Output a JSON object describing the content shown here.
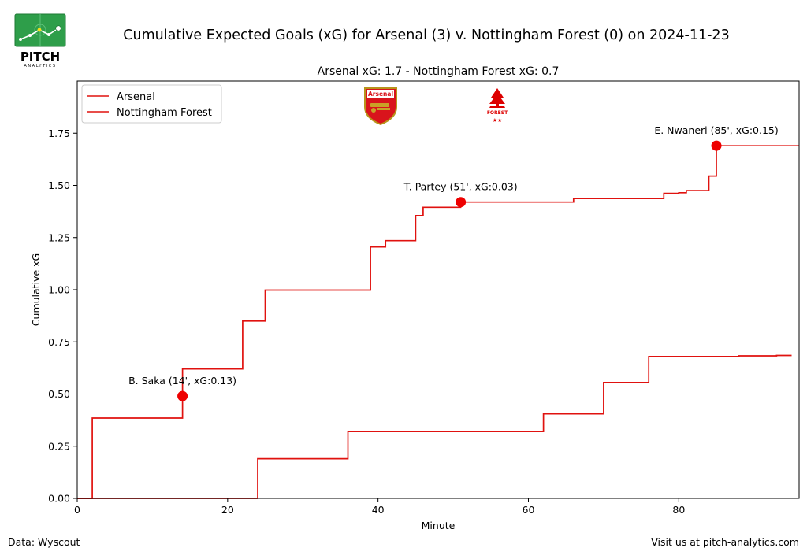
{
  "header": {
    "logo_text": "PITCH",
    "logo_subtext": "ANALYTICS",
    "title": "Cumulative Expected Goals (xG) for Arsenal (3) v. Nottingham Forest (0) on 2024-11-23"
  },
  "footer": {
    "source": "Data: Wyscout",
    "website": "Visit us at pitch-analytics.com"
  },
  "badges": {
    "home_text": "Arsenal",
    "away_text": "FOREST"
  },
  "colors": {
    "line": "#e0120f",
    "goal_marker": "#ee0000"
  },
  "chart_data": {
    "type": "line",
    "subtitle": "Arsenal xG: 1.7 - Nottingham Forest xG: 0.7",
    "xlabel": "Minute",
    "ylabel": "Cumulative xG",
    "xlim": [
      0,
      96
    ],
    "ylim": [
      0,
      2.0
    ],
    "xticks": [
      0,
      20,
      40,
      60,
      80
    ],
    "yticks": [
      0.0,
      0.25,
      0.5,
      0.75,
      1.0,
      1.25,
      1.5,
      1.75
    ],
    "xtick_labels": [
      "0",
      "20",
      "40",
      "60",
      "80"
    ],
    "ytick_labels": [
      "0.00",
      "0.25",
      "0.50",
      "0.75",
      "1.00",
      "1.25",
      "1.50",
      "1.75"
    ],
    "grid": false,
    "legend_position": "top-left",
    "series": [
      {
        "name": "Arsenal",
        "step": "post",
        "x": [
          0,
          2,
          14,
          14,
          22,
          25,
          39,
          41,
          45,
          46,
          51,
          66,
          78,
          80,
          81,
          84,
          85,
          96
        ],
        "y": [
          0,
          0.385,
          0.49,
          0.62,
          0.85,
          0.998,
          1.205,
          1.235,
          1.355,
          1.395,
          1.42,
          1.437,
          1.462,
          1.465,
          1.475,
          1.545,
          1.69,
          1.69
        ]
      },
      {
        "name": "Nottingham Forest",
        "step": "post",
        "x": [
          0,
          24,
          36,
          62,
          70,
          76,
          88,
          93,
          95
        ],
        "y": [
          0,
          0.19,
          0.32,
          0.405,
          0.555,
          0.68,
          0.683,
          0.685,
          0.685
        ]
      }
    ],
    "goals": [
      {
        "minute": 14,
        "xg": 0.49,
        "label": "B. Saka (14', xG:0.13)"
      },
      {
        "minute": 51,
        "xg": 1.42,
        "label": "T. Partey (51', xG:0.03)"
      },
      {
        "minute": 85,
        "xg": 1.69,
        "label": "E. Nwaneri (85', xG:0.15)"
      }
    ]
  }
}
